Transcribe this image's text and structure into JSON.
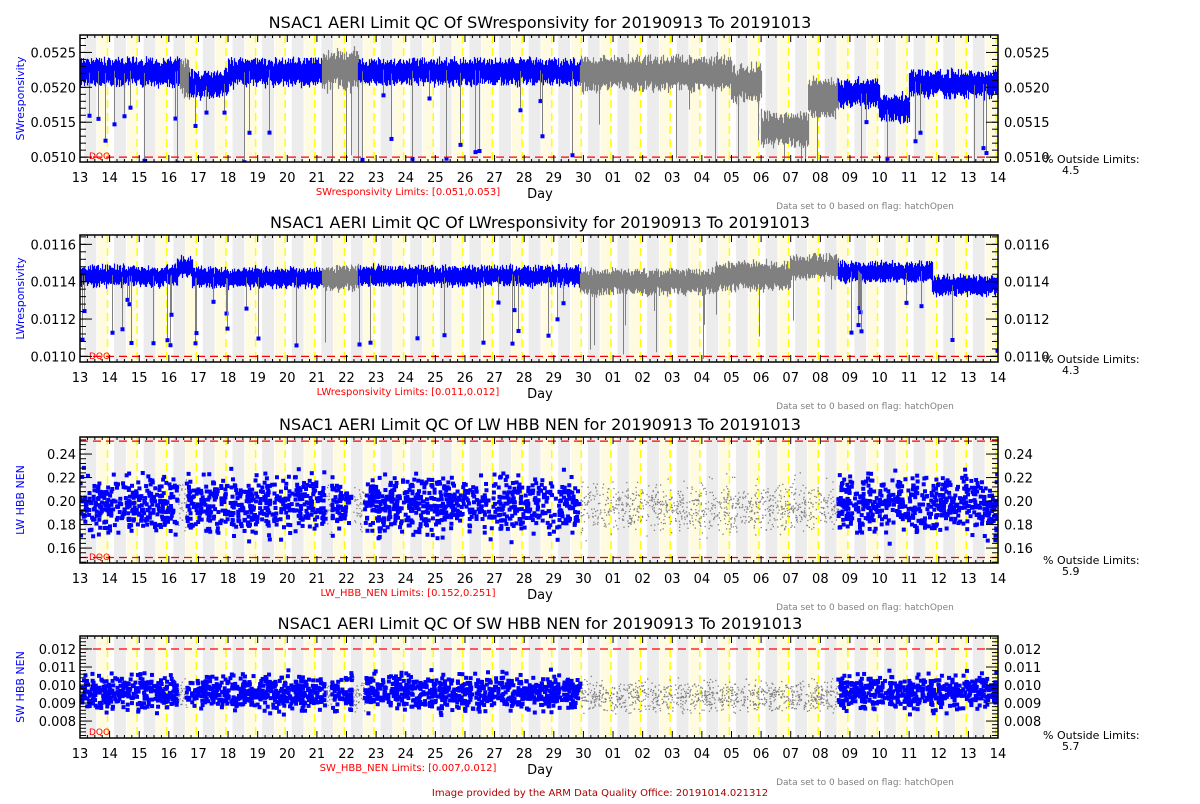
{
  "colors": {
    "good": "#0000ff",
    "flagged": "#808080",
    "limit": "#ff0000",
    "night_band": "#ececec",
    "day_band": "#fffbe0",
    "day_line": "#ffff00",
    "footer": "#aa0000"
  },
  "footer": "Image provided by the ARM Data Quality Office: 20191014.021312",
  "chart_data": [
    {
      "type": "line",
      "title": "NSAC1 AERI Limit QC Of SWresponsivity for 20190913 To 20191013",
      "ylabel": "SWresponsivity",
      "xlabel": "Day",
      "xtick_labels": [
        "13",
        "14",
        "15",
        "16",
        "17",
        "18",
        "19",
        "20",
        "21",
        "22",
        "23",
        "24",
        "25",
        "26",
        "27",
        "28",
        "29",
        "30",
        "01",
        "02",
        "03",
        "04",
        "05",
        "06",
        "07",
        "08",
        "09",
        "10",
        "11",
        "12",
        "13",
        "14"
      ],
      "ylim": [
        0.05093,
        0.05275
      ],
      "yticks": [
        0.051,
        0.0515,
        0.052,
        0.0525
      ],
      "ytick_labels": [
        "0.0510",
        "0.0515",
        "0.0520",
        "0.0525"
      ],
      "limits": [
        0.051,
        0.053
      ],
      "limits_label": "SWresponsivity Limits: [0.051,0.053]",
      "dqo_label": "DQO",
      "note": "Data set to 0 based on flag: hatchOpen",
      "outside_label": "% Outside Limits:",
      "outside_value": "4.5",
      "segments": [
        [
          0,
          3.4,
          0.05222,
          0.00018,
          "good"
        ],
        [
          3.4,
          3.7,
          0.05215,
          0.00025,
          "flagged"
        ],
        [
          3.7,
          5.0,
          0.05205,
          0.00018,
          "good"
        ],
        [
          5.0,
          8.2,
          0.05222,
          0.00018,
          "good"
        ],
        [
          8.2,
          9.4,
          0.05225,
          0.00025,
          "flagged"
        ],
        [
          9.4,
          16.9,
          0.05222,
          0.00017,
          "good"
        ],
        [
          16.9,
          22.0,
          0.0522,
          0.00022,
          "flagged"
        ],
        [
          22.0,
          23.0,
          0.05205,
          0.00025,
          "flagged"
        ],
        [
          23.0,
          24.6,
          0.0514,
          0.00022,
          "flagged"
        ],
        [
          24.6,
          25.6,
          0.05185,
          0.00025,
          "flagged"
        ],
        [
          25.6,
          27.0,
          0.05192,
          0.00018,
          "good"
        ],
        [
          27.0,
          28.0,
          0.0517,
          0.00018,
          "good"
        ],
        [
          28.0,
          31.0,
          0.05205,
          0.00018,
          "good"
        ]
      ],
      "style": "series"
    },
    {
      "type": "line",
      "title": "NSAC1 AERI Limit QC Of LWresponsivity for 20190913 To 20191013",
      "ylabel": "LWresponsivity",
      "xlabel": "Day",
      "xtick_labels": [
        "13",
        "14",
        "15",
        "16",
        "17",
        "18",
        "19",
        "20",
        "21",
        "22",
        "23",
        "24",
        "25",
        "26",
        "27",
        "28",
        "29",
        "30",
        "01",
        "02",
        "03",
        "04",
        "05",
        "06",
        "07",
        "08",
        "09",
        "10",
        "11",
        "12",
        "13",
        "14"
      ],
      "ylim": [
        0.01097,
        0.01165
      ],
      "yticks": [
        0.011,
        0.0112,
        0.0114,
        0.0116
      ],
      "ytick_labels": [
        "0.0110",
        "0.0112",
        "0.0114",
        "0.0116"
      ],
      "limits": [
        0.011,
        0.012
      ],
      "limits_label": "LWresponsivity Limits: [0.011,0.012]",
      "dqo_label": "DQO",
      "note": "Data set to 0 based on flag: hatchOpen",
      "outside_label": "% Outside Limits:",
      "outside_value": "4.3",
      "segments": [
        [
          0,
          3.3,
          0.01143,
          5e-05,
          "good"
        ],
        [
          3.3,
          3.8,
          0.01148,
          5e-05,
          "good"
        ],
        [
          3.8,
          8.2,
          0.01142,
          5e-05,
          "good"
        ],
        [
          8.2,
          9.4,
          0.01142,
          6e-05,
          "flagged"
        ],
        [
          9.4,
          16.9,
          0.01143,
          5e-05,
          "good"
        ],
        [
          16.9,
          21.5,
          0.0114,
          6e-05,
          "flagged"
        ],
        [
          21.5,
          24.0,
          0.01143,
          7e-05,
          "flagged"
        ],
        [
          24.0,
          25.6,
          0.01148,
          6e-05,
          "flagged"
        ],
        [
          25.6,
          28.8,
          0.01145,
          5e-05,
          "good"
        ],
        [
          28.8,
          31.0,
          0.01138,
          5e-05,
          "good"
        ]
      ],
      "style": "series"
    },
    {
      "type": "scatter",
      "title": "NSAC1 AERI Limit QC Of LW HBB NEN for 20190913 To 20191013",
      "ylabel": "LW HBB NEN",
      "xlabel": "Day",
      "xtick_labels": [
        "13",
        "14",
        "15",
        "16",
        "17",
        "18",
        "19",
        "20",
        "21",
        "22",
        "23",
        "24",
        "25",
        "26",
        "27",
        "28",
        "29",
        "30",
        "01",
        "02",
        "03",
        "04",
        "05",
        "06",
        "07",
        "08",
        "09",
        "10",
        "11",
        "12",
        "13",
        "14"
      ],
      "ylim": [
        0.1473,
        0.2545
      ],
      "yticks": [
        0.16,
        0.18,
        0.2,
        0.22,
        0.24
      ],
      "ytick_labels": [
        "0.16",
        "0.18",
        "0.20",
        "0.22",
        "0.24"
      ],
      "limits": [
        0.152,
        0.251
      ],
      "limits_label": "LW_HBB_NEN Limits: [0.152,0.251]",
      "dqo_label": "DQO",
      "note": "Data set to 0 based on flag: hatchOpen",
      "outside_label": "% Outside Limits:",
      "outside_value": "5.9",
      "segments": [
        [
          0,
          3.3,
          0.197,
          0.028,
          "good"
        ],
        [
          3.3,
          3.6,
          0.195,
          0.025,
          "flagged"
        ],
        [
          3.6,
          8.3,
          0.197,
          0.028,
          "good"
        ],
        [
          8.3,
          8.5,
          0.195,
          0.025,
          "flagged"
        ],
        [
          8.5,
          9.2,
          0.197,
          0.028,
          "good"
        ],
        [
          9.2,
          9.6,
          0.195,
          0.025,
          "flagged"
        ],
        [
          9.6,
          16.9,
          0.197,
          0.028,
          "good"
        ],
        [
          16.9,
          25.6,
          0.195,
          0.025,
          "flagged"
        ],
        [
          25.6,
          31.0,
          0.197,
          0.028,
          "good"
        ]
      ],
      "style": "scatter"
    },
    {
      "type": "scatter",
      "title": "NSAC1 AERI Limit QC Of SW HBB NEN for 20190913 To 20191013",
      "ylabel": "SW HBB NEN",
      "xlabel": "Day",
      "xtick_labels": [
        "13",
        "14",
        "15",
        "16",
        "17",
        "18",
        "19",
        "20",
        "21",
        "22",
        "23",
        "24",
        "25",
        "26",
        "27",
        "28",
        "29",
        "30",
        "01",
        "02",
        "03",
        "04",
        "05",
        "06",
        "07",
        "08",
        "09",
        "10",
        "11",
        "12",
        "13",
        "14"
      ],
      "ylim": [
        0.00706,
        0.01272
      ],
      "yticks": [
        0.008,
        0.009,
        0.01,
        0.011,
        0.012
      ],
      "ytick_labels": [
        "0.008",
        "0.009",
        "0.010",
        "0.011",
        "0.012"
      ],
      "limits": [
        0.007,
        0.012
      ],
      "limits_label": "SW_HBB_NEN Limits: [0.007,0.012]",
      "dqo_label": "DQO",
      "note": "Data set to 0 based on flag: hatchOpen",
      "outside_label": "% Outside Limits:",
      "outside_value": "5.7",
      "segments": [
        [
          0,
          3.3,
          0.0096,
          0.0011,
          "good"
        ],
        [
          3.3,
          3.6,
          0.0095,
          0.001,
          "flagged"
        ],
        [
          3.6,
          8.3,
          0.0096,
          0.0011,
          "good"
        ],
        [
          8.3,
          8.5,
          0.0095,
          0.001,
          "flagged"
        ],
        [
          8.5,
          9.2,
          0.0096,
          0.0011,
          "good"
        ],
        [
          9.2,
          9.6,
          0.0095,
          0.001,
          "flagged"
        ],
        [
          9.6,
          16.9,
          0.0096,
          0.0011,
          "good"
        ],
        [
          16.9,
          25.6,
          0.0094,
          0.001,
          "flagged"
        ],
        [
          25.6,
          31.0,
          0.0096,
          0.0011,
          "good"
        ]
      ],
      "style": "scatter"
    }
  ]
}
